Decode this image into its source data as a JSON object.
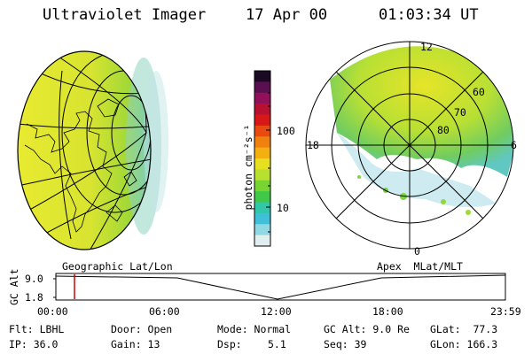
{
  "header": {
    "instrument": "Ultraviolet Imager",
    "date": "17 Apr 00",
    "time": "01:03:34 UT"
  },
  "colorbar": {
    "label": "photon cm⁻²s⁻¹",
    "ticks": [
      "100",
      "10"
    ],
    "colors": [
      "#1a0a24",
      "#5a1050",
      "#90105a",
      "#b81030",
      "#d81818",
      "#e84a10",
      "#f08010",
      "#f4b010",
      "#e6e020",
      "#b8e030",
      "#78d430",
      "#40c848",
      "#30c8a8",
      "#40c0d8",
      "#90d8e4",
      "#e0eef0"
    ]
  },
  "earth_panel": {
    "label": "Geographic Lat/Lon"
  },
  "polar_panel": {
    "label": "Apex  MLat/MLT",
    "mlt_labels": {
      "top": "12",
      "left": "18",
      "right": "6",
      "bottom": "0"
    },
    "lat_labels": [
      "60",
      "70",
      "80"
    ]
  },
  "altitude_plot": {
    "ylabel": "GC Alt",
    "y_ticks": [
      "9.0",
      "1.8"
    ],
    "x_ticks": [
      "00:00",
      "06:00",
      "12:00",
      "18:00",
      "23:59"
    ],
    "marker_color": "#cc0000"
  },
  "info": {
    "flt": "Flt: LBHL",
    "ip": "IP: 36.0",
    "door": "Door: Open",
    "gain": "Gain: 13",
    "mode": "Mode: Normal",
    "dsp_label": "Dsp:",
    "dsp_value": "5.1",
    "gcalt": "GC Alt: 9.0 Re",
    "seq": "Seq: 39",
    "glat": "GLat:  77.3",
    "glon": "GLon: 166.3"
  }
}
